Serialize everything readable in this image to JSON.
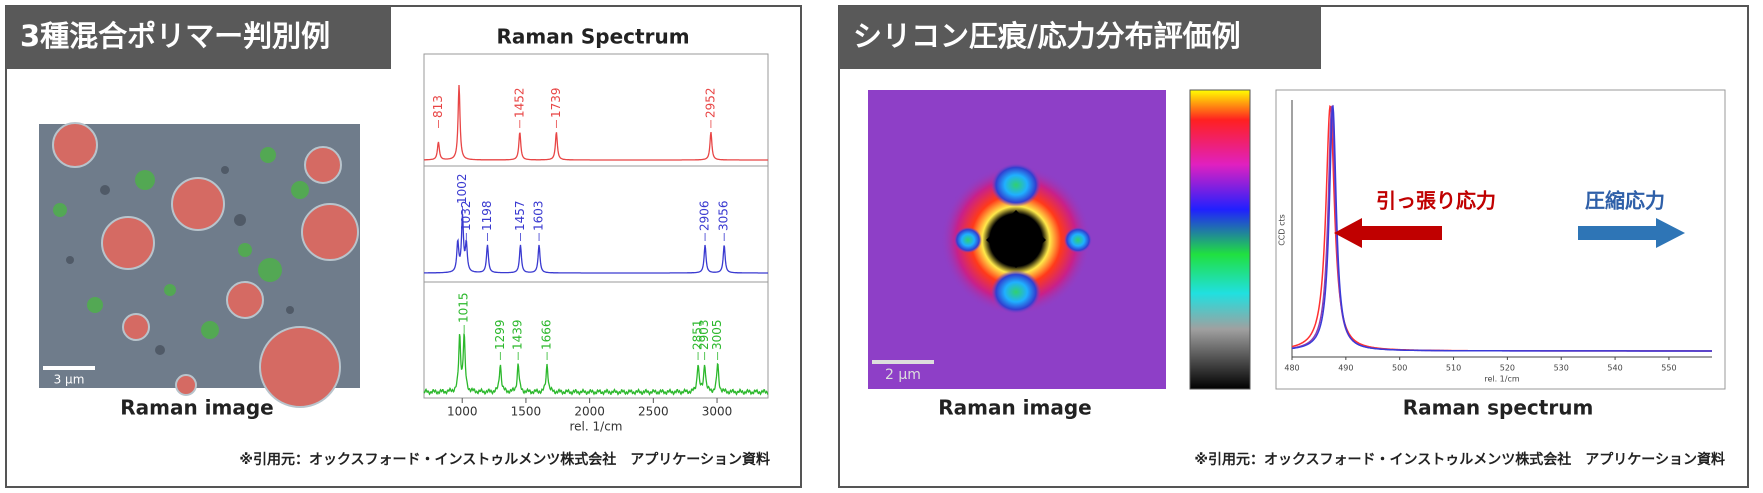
{
  "panels": [
    {
      "title": "3種混合ポリマー判別例",
      "image_caption": "Raman image",
      "scale_bar": "3 μm",
      "spectrum": {
        "title": "Raman Spectrum",
        "x_label": "rel. 1/cm",
        "xlim": [
          700,
          3400
        ],
        "xticks": [
          1000,
          1500,
          2000,
          2500,
          3000
        ],
        "series": [
          {
            "color": "#e84545",
            "peaks": [
              813,
              1452,
              1739,
              2952
            ]
          },
          {
            "color": "#3a3ad0",
            "peaks": [
              1002,
              1032,
              1198,
              1457,
              1603,
              2906,
              3056
            ]
          },
          {
            "color": "#2cb82c",
            "peaks": [
              1015,
              1299,
              1439,
              1666,
              2851,
              2903,
              3005
            ]
          }
        ]
      },
      "source": "※引用元：オックスフォード・インストゥルメンツ株式会社　アプリケーション資料"
    },
    {
      "title": "シリコン圧痕/応力分布評価例",
      "image_caption": "Raman image",
      "scale_bar": "2 μm",
      "tensile_label": "引っ張り応力",
      "compressive_label": "圧縮応力",
      "spectrum": {
        "title": "Raman spectrum",
        "x_label": "rel. 1/cm",
        "y_label": "CCD cts",
        "xlim": [
          480,
          558
        ],
        "xticks": [
          480,
          490,
          500,
          510,
          520,
          530,
          540,
          550
        ]
      },
      "source": "※引用元：オックスフォード・インストゥルメンツ株式会社　アプリケーション資料"
    }
  ]
}
